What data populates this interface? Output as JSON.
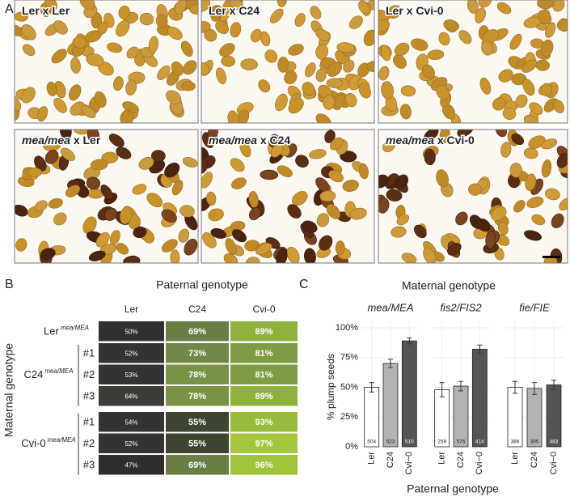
{
  "panel_a": {
    "label": "A",
    "photos": [
      {
        "caption": "Ler x Ler"
      },
      {
        "caption": "Ler x C24"
      },
      {
        "caption": "Ler x Cvi-0"
      },
      {
        "caption_italic": "mea/mea",
        "caption": " x Ler"
      },
      {
        "caption_italic": "mea/mea",
        "caption": " x C24"
      },
      {
        "caption_italic": "mea/mea",
        "caption": " x Cvi-0"
      }
    ]
  },
  "panel_b": {
    "label": "B",
    "title": "Paternal genotype",
    "row_axis_label": "Maternal genotype",
    "columns": [
      "Ler",
      "C24",
      "Cvi-0"
    ],
    "groups": [
      {
        "name": "Ler",
        "superscript": "mea/MEA",
        "rows": [
          {
            "cells": [
              {
                "text": "50%",
                "color": "#303030"
              },
              {
                "text": "69%",
                "color": "#6a7d45"
              },
              {
                "text": "89%",
                "color": "#8fb23f"
              }
            ]
          }
        ]
      },
      {
        "name": "C24",
        "superscript": "mea/MEA",
        "rows": [
          {
            "label": "#1",
            "cells": [
              {
                "text": "52%",
                "color": "#333333"
              },
              {
                "text": "73%",
                "color": "#728848"
              },
              {
                "text": "81%",
                "color": "#7f9b43"
              }
            ]
          },
          {
            "label": "#2",
            "cells": [
              {
                "text": "53%",
                "color": "#333333"
              },
              {
                "text": "78%",
                "color": "#7a9246"
              },
              {
                "text": "81%",
                "color": "#7f9b43"
              }
            ]
          },
          {
            "label": "#3",
            "cells": [
              {
                "text": "64%",
                "color": "#3b3c36"
              },
              {
                "text": "78%",
                "color": "#7a9246"
              },
              {
                "text": "89%",
                "color": "#8fb23f"
              }
            ]
          }
        ]
      },
      {
        "name": "Cvi-0",
        "superscript": "mea/MEA",
        "rows": [
          {
            "label": "#1",
            "cells": [
              {
                "text": "54%",
                "color": "#333333"
              },
              {
                "text": "55%",
                "color": "#3d4430"
              },
              {
                "text": "93%",
                "color": "#99bb3c"
              }
            ]
          },
          {
            "label": "#2",
            "cells": [
              {
                "text": "52%",
                "color": "#333333"
              },
              {
                "text": "55%",
                "color": "#3d4430"
              },
              {
                "text": "97%",
                "color": "#a3c63a"
              }
            ]
          },
          {
            "label": "#3",
            "cells": [
              {
                "text": "47%",
                "color": "#2e2e2e"
              },
              {
                "text": "69%",
                "color": "#6a7d45"
              },
              {
                "text": "96%",
                "color": "#a0c33b"
              }
            ]
          }
        ]
      }
    ]
  },
  "panel_c": {
    "label": "C",
    "title": "Maternal genotype",
    "x_label": "Paternal genotype",
    "y_label": "% plump seeds"
  },
  "chart_data": [
    {
      "type": "bar",
      "title": "mea/MEA",
      "categories": [
        "Ler",
        "C24",
        "Cvi−0"
      ],
      "values": [
        50,
        70,
        89
      ],
      "errors": [
        4,
        3.5,
        2.5
      ],
      "counts": [
        504,
        523,
        510
      ],
      "colors": [
        "#ffffff",
        "#b3b3b3",
        "#555555"
      ],
      "ylim": [
        0,
        100
      ],
      "yticks": [
        {
          "value": 0,
          "label": "0%"
        },
        {
          "value": 25,
          "label": "25%"
        },
        {
          "value": 50,
          "label": "50%"
        },
        {
          "value": 75,
          "label": "75%"
        },
        {
          "value": 100,
          "label": "100%"
        }
      ],
      "grid": true
    },
    {
      "type": "bar",
      "title": "fis2/FIS2",
      "categories": [
        "Ler",
        "C24",
        "Cvi−0"
      ],
      "values": [
        48,
        51,
        82
      ],
      "errors": [
        6,
        4,
        3.5
      ],
      "counts": [
        259,
        576,
        414
      ],
      "colors": [
        "#ffffff",
        "#b3b3b3",
        "#555555"
      ],
      "ylim": [
        0,
        100
      ],
      "yticks": [
        0,
        25,
        50,
        75,
        100
      ],
      "grid": true
    },
    {
      "type": "bar",
      "title": "fie/FIE",
      "categories": [
        "Ler",
        "C24",
        "Cvi−0"
      ],
      "values": [
        50,
        49,
        52
      ],
      "errors": [
        5,
        5,
        4
      ],
      "counts": [
        386,
        395,
        483
      ],
      "colors": [
        "#ffffff",
        "#b3b3b3",
        "#555555"
      ],
      "ylim": [
        0,
        100
      ],
      "yticks": [
        0,
        25,
        50,
        75,
        100
      ],
      "grid": true
    }
  ]
}
